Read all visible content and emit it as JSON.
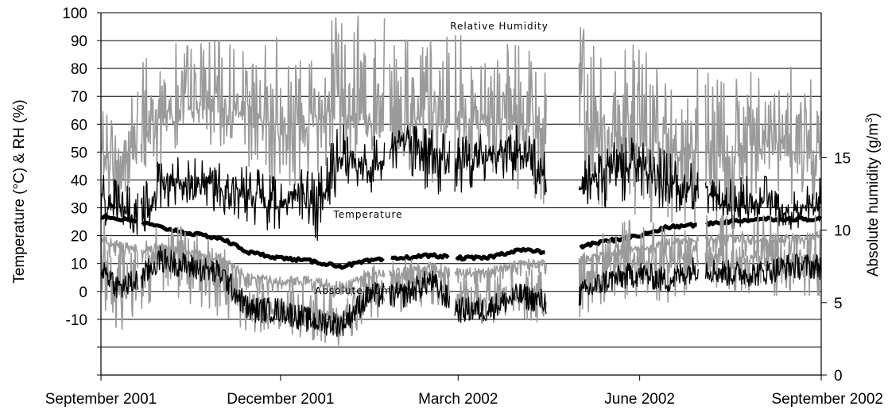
{
  "chart_data": {
    "type": "line",
    "title": "",
    "x_range": [
      "2001-09-01",
      "2002-09-01"
    ],
    "x_ticks": [
      {
        "label": "September 2001",
        "date": "2001-09-01"
      },
      {
        "label": "December 2001",
        "date": "2001-12-01"
      },
      {
        "label": "March 2002",
        "date": "2002-03-01"
      },
      {
        "label": "June 2002",
        "date": "2002-06-01"
      },
      {
        "label": "September 2002",
        "date": "2002-09-01"
      }
    ],
    "y_left": {
      "label": "Temperature (°C) & RH (%)",
      "range": [
        -30,
        100
      ],
      "ticks": [
        100,
        90,
        80,
        70,
        60,
        50,
        40,
        30,
        20,
        10,
        0,
        -10
      ]
    },
    "y_right": {
      "label_parts": [
        "Absolute humidity (g/m",
        "3",
        ")"
      ],
      "range": [
        0,
        25
      ],
      "ticks": [
        0,
        5,
        10,
        15
      ]
    },
    "grid": true,
    "annotations": [
      "Relative Humidity",
      "Temperature",
      "Absolute Humidity"
    ],
    "colors": {
      "black_series": "#000000",
      "gray_series": "#9a9a9a",
      "grid": "#000000"
    },
    "gaps": [
      [
        "2001-09-20",
        "2001-09-21"
      ],
      [
        "2002-01-23",
        "2002-01-25"
      ],
      [
        "2002-02-25",
        "2002-02-27"
      ],
      [
        "2002-04-15",
        "2002-05-01"
      ],
      [
        "2002-07-01",
        "2002-07-04"
      ]
    ],
    "series": [
      {
        "axis": "left",
        "style": "gray-thin",
        "x": [
          "2001-09-01",
          "2001-09-10",
          "2001-09-20",
          "2001-10-01",
          "2001-10-15",
          "2001-11-01",
          "2001-11-15",
          "2001-12-01",
          "2001-12-15",
          "2002-01-01",
          "2002-01-15",
          "2002-02-01",
          "2002-02-15",
          "2002-03-01",
          "2002-03-15",
          "2002-04-01",
          "2002-04-15",
          "2002-05-01",
          "2002-05-15",
          "2002-06-01",
          "2002-06-15",
          "2002-07-01",
          "2002-07-15",
          "2002-08-01",
          "2002-08-15",
          "2002-09-01"
        ],
        "y": [
          48,
          45,
          55,
          62,
          65,
          66,
          63,
          60,
          62,
          64,
          62,
          65,
          60,
          62,
          63,
          60,
          58,
          60,
          58,
          52,
          50,
          50,
          48,
          50,
          50,
          52
        ],
        "range_low": [
          25,
          22,
          40,
          45,
          50,
          50,
          45,
          35,
          40,
          50,
          45,
          45,
          35,
          40,
          45,
          35,
          30,
          35,
          30,
          25,
          25,
          25,
          25,
          30,
          28,
          30
        ],
        "range_high": [
          65,
          60,
          80,
          90,
          88,
          90,
          85,
          92,
          90,
          100,
          98,
          98,
          90,
          92,
          90,
          88,
          85,
          95,
          90,
          88,
          78,
          80,
          75,
          80,
          80,
          85
        ]
      },
      {
        "axis": "left",
        "style": "black-thin",
        "x": [
          "2001-09-01",
          "2001-09-10",
          "2001-09-20",
          "2001-10-01",
          "2001-10-15",
          "2001-11-01",
          "2001-11-15",
          "2001-12-01",
          "2001-12-10",
          "2001-12-20",
          "2002-01-01",
          "2002-01-15",
          "2002-02-01",
          "2002-02-15",
          "2002-03-01",
          "2002-03-15",
          "2002-04-01",
          "2002-04-15",
          "2002-05-01",
          "2002-05-15",
          "2002-06-01",
          "2002-06-15",
          "2002-07-01",
          "2002-07-15",
          "2002-08-01",
          "2002-08-15",
          "2002-09-01"
        ],
        "y": [
          33,
          30,
          25,
          38,
          40,
          38,
          35,
          30,
          36,
          30,
          48,
          43,
          55,
          50,
          45,
          50,
          50,
          40,
          35,
          45,
          48,
          38,
          38,
          30,
          32,
          28,
          32
        ],
        "range_low": [
          25,
          20,
          18,
          30,
          32,
          28,
          25,
          20,
          28,
          18,
          40,
          35,
          45,
          35,
          35,
          40,
          40,
          32,
          28,
          30,
          35,
          28,
          30,
          22,
          25,
          22,
          25
        ],
        "range_high": [
          42,
          40,
          35,
          48,
          48,
          46,
          45,
          40,
          44,
          42,
          62,
          55,
          60,
          58,
          55,
          57,
          60,
          50,
          45,
          55,
          55,
          50,
          45,
          40,
          42,
          38,
          42
        ]
      },
      {
        "axis": "left",
        "style": "black-thick",
        "x": [
          "2001-09-01",
          "2001-09-10",
          "2001-09-20",
          "2001-10-01",
          "2001-10-15",
          "2001-11-01",
          "2001-11-15",
          "2001-12-01",
          "2001-12-15",
          "2002-01-01",
          "2002-01-15",
          "2002-02-01",
          "2002-02-15",
          "2002-03-01",
          "2002-03-15",
          "2002-04-01",
          "2002-04-15",
          "2002-05-01",
          "2002-05-15",
          "2002-06-01",
          "2002-06-15",
          "2002-07-01",
          "2002-07-15",
          "2002-08-01",
          "2002-08-15",
          "2002-09-01"
        ],
        "y": [
          27,
          26,
          25,
          23,
          21,
          19,
          14,
          12,
          11,
          9,
          11,
          12,
          13,
          12,
          12,
          15,
          14,
          16,
          18,
          20,
          23,
          24,
          25,
          26,
          26,
          26
        ]
      },
      {
        "axis": "left",
        "style": "gray-thin",
        "x": [
          "2001-09-01",
          "2001-09-10",
          "2001-09-20",
          "2001-10-01",
          "2001-10-15",
          "2001-11-01",
          "2001-11-15",
          "2001-12-01",
          "2001-12-15",
          "2002-01-01",
          "2002-01-15",
          "2002-02-01",
          "2002-02-15",
          "2002-03-01",
          "2002-03-15",
          "2002-04-01",
          "2002-04-15",
          "2002-05-01",
          "2002-05-15",
          "2002-06-01",
          "2002-06-15",
          "2002-07-01",
          "2002-07-15",
          "2002-08-01",
          "2002-08-15",
          "2002-09-01"
        ],
        "y": [
          19,
          17,
          15,
          16,
          14,
          12,
          5,
          4,
          4,
          2,
          6,
          7,
          9,
          7,
          7,
          10,
          10,
          11,
          13,
          15,
          18,
          19,
          19,
          19,
          19,
          20
        ],
        "range_low": [
          12,
          10,
          8,
          10,
          8,
          3,
          -2,
          -1,
          -2,
          -3,
          2,
          2,
          4,
          2,
          2,
          5,
          5,
          6,
          8,
          10,
          12,
          14,
          14,
          14,
          14,
          14
        ]
      },
      {
        "axis": "right",
        "style": "gray-thin",
        "x": [
          "2001-09-01",
          "2001-09-10",
          "2001-09-20",
          "2001-10-01",
          "2001-10-15",
          "2001-11-01",
          "2001-11-15",
          "2001-12-01",
          "2001-12-15",
          "2002-01-01",
          "2002-01-15",
          "2002-02-01",
          "2002-02-15",
          "2002-03-01",
          "2002-03-15",
          "2002-04-01",
          "2002-04-15",
          "2002-05-01",
          "2002-05-15",
          "2002-06-01",
          "2002-06-15",
          "2002-07-01",
          "2002-07-15",
          "2002-08-01",
          "2002-08-15",
          "2002-09-01"
        ],
        "y": [
          8,
          6,
          7,
          9,
          8,
          7,
          4.5,
          4.5,
          4,
          4,
          6,
          6,
          7,
          5,
          5,
          6,
          5,
          6,
          7,
          8,
          7.5,
          8.5,
          8,
          8,
          8,
          8
        ],
        "range_low": [
          5,
          3,
          4,
          6,
          5,
          4,
          3,
          3,
          2.5,
          2,
          4,
          4,
          5,
          4,
          3.5,
          4,
          3.5,
          4,
          5,
          5.5,
          5,
          6,
          6,
          5.5,
          5.5,
          5.5
        ],
        "range_high": [
          11,
          9,
          9,
          11,
          10,
          9,
          6.5,
          6,
          6,
          6,
          7.5,
          8,
          8,
          7,
          7,
          7.5,
          7,
          8,
          10,
          11,
          10,
          11,
          11,
          11,
          11,
          11
        ]
      },
      {
        "axis": "right",
        "style": "black-thin",
        "x": [
          "2001-09-01",
          "2001-09-10",
          "2001-09-20",
          "2001-10-01",
          "2001-10-15",
          "2001-11-01",
          "2001-11-15",
          "2001-12-01",
          "2001-12-15",
          "2002-01-01",
          "2002-01-15",
          "2002-02-01",
          "2002-02-15",
          "2002-03-01",
          "2002-03-15",
          "2002-04-01",
          "2002-04-15",
          "2002-05-01",
          "2002-05-15",
          "2002-06-01",
          "2002-06-15",
          "2002-07-01",
          "2002-07-15",
          "2002-08-01",
          "2002-08-15",
          "2002-09-01"
        ],
        "y": [
          7.5,
          6,
          6.5,
          8,
          7.5,
          7,
          4.5,
          4.5,
          3.8,
          3.5,
          5.5,
          5.5,
          6.5,
          4.5,
          4.5,
          5.5,
          5,
          5.5,
          6.5,
          7,
          6.5,
          7.5,
          7,
          7,
          7.5,
          7.5
        ]
      }
    ]
  }
}
